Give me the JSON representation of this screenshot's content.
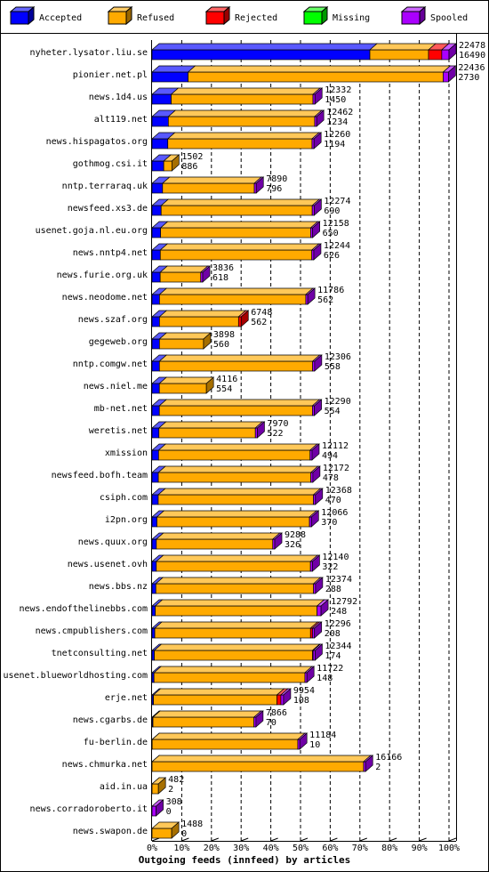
{
  "chart_data": {
    "type": "stacked-bar-3d",
    "title": "Outgoing feeds (innfeed) by articles",
    "categories": [
      "nyheter.lysator.liu.se",
      "pionier.net.pl",
      "news.1d4.us",
      "alt119.net",
      "news.hispagatos.org",
      "gothmog.csi.it",
      "nntp.terraraq.uk",
      "newsfeed.xs3.de",
      "usenet.goja.nl.eu.org",
      "news.nntp4.net",
      "news.furie.org.uk",
      "news.neodome.net",
      "news.szaf.org",
      "gegeweb.org",
      "nntp.comgw.net",
      "news.niel.me",
      "mb-net.net",
      "weretis.net",
      "xmission",
      "newsfeed.bofh.team",
      "csiph.com",
      "i2pn.org",
      "news.quux.org",
      "news.usenet.ovh",
      "news.bbs.nz",
      "news.endofthelinebbs.com",
      "news.cmpublishers.com",
      "tnetconsulting.net",
      "usenet.blueworldhosting.com",
      "erje.net",
      "news.cgarbs.de",
      "fu-berlin.de",
      "news.chmurka.net",
      "aid.in.ua",
      "news.corradoroberto.it",
      "news.swapon.de"
    ],
    "totals": [
      22478,
      22436,
      12332,
      12462,
      12260,
      1502,
      7890,
      12274,
      12158,
      12244,
      3836,
      11786,
      6748,
      3898,
      12306,
      4116,
      12290,
      7970,
      12112,
      12172,
      12368,
      12066,
      9288,
      12140,
      12374,
      12792,
      12296,
      12344,
      11722,
      9954,
      7866,
      11184,
      16166,
      482,
      308,
      1488
    ],
    "series": [
      {
        "name": "Accepted",
        "color": "#0000ff",
        "values": [
          16490,
          2730,
          1450,
          1234,
          1194,
          886,
          796,
          690,
          650,
          626,
          618,
          562,
          562,
          560,
          558,
          554,
          554,
          522,
          494,
          478,
          470,
          370,
          326,
          322,
          288,
          248,
          208,
          174,
          148,
          108,
          70,
          10,
          2,
          2,
          0,
          0
        ]
      },
      {
        "name": "Refused",
        "color": "#ffaa00",
        "values": [
          4440,
          19306,
          10732,
          11078,
          10916,
          616,
          6944,
          11434,
          11358,
          11468,
          3068,
          11074,
          5986,
          3338,
          11598,
          3562,
          11586,
          7298,
          11468,
          11544,
          11748,
          11546,
          8812,
          11668,
          11936,
          12244,
          11788,
          11970,
          11424,
          9346,
          7646,
          11024,
          16014,
          480,
          0,
          1488
        ]
      },
      {
        "name": "Rejected",
        "color": "#ff0000",
        "values": [
          1000,
          0,
          0,
          0,
          0,
          0,
          0,
          0,
          0,
          0,
          0,
          0,
          200,
          0,
          0,
          0,
          0,
          0,
          0,
          0,
          0,
          0,
          0,
          0,
          0,
          0,
          150,
          50,
          0,
          300,
          0,
          0,
          0,
          0,
          0,
          0
        ]
      },
      {
        "name": "Missing",
        "color": "#00ff00",
        "values": [
          0,
          0,
          0,
          0,
          0,
          0,
          0,
          0,
          0,
          0,
          0,
          0,
          0,
          0,
          0,
          0,
          0,
          0,
          0,
          0,
          0,
          0,
          0,
          0,
          0,
          0,
          0,
          0,
          0,
          0,
          0,
          0,
          0,
          0,
          0,
          0
        ]
      },
      {
        "name": "Spooled",
        "color": "#aa00ff",
        "values": [
          548,
          400,
          150,
          150,
          150,
          0,
          150,
          150,
          150,
          150,
          150,
          150,
          0,
          0,
          150,
          0,
          150,
          150,
          150,
          150,
          150,
          150,
          150,
          150,
          150,
          300,
          150,
          150,
          150,
          200,
          150,
          150,
          150,
          0,
          308,
          0
        ]
      }
    ],
    "xlim": [
      0,
      22478
    ],
    "xticks": [
      {
        "value": 0,
        "label": "0%"
      },
      {
        "value": 2247.8,
        "label": "10%"
      },
      {
        "value": 4495.6,
        "label": "20%"
      },
      {
        "value": 6743.4,
        "label": "30%"
      },
      {
        "value": 8991.2,
        "label": "40%"
      },
      {
        "value": 11239,
        "label": "50%"
      },
      {
        "value": 13486.8,
        "label": "60%"
      },
      {
        "value": 15734.6,
        "label": "70%"
      },
      {
        "value": 17982.4,
        "label": "80%"
      },
      {
        "value": 20230.2,
        "label": "90%"
      },
      {
        "value": 22478,
        "label": "100%"
      }
    ],
    "grid": true
  }
}
